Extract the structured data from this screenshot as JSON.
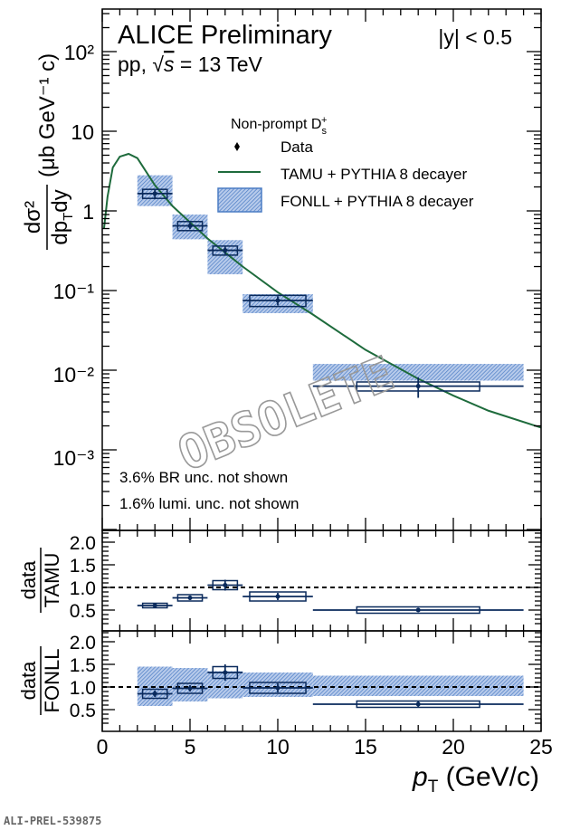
{
  "header": {
    "experiment": "ALICE Preliminary",
    "system_prefix": "pp, ",
    "sqrt": "√",
    "s": "s",
    "energy": " = 13 TeV",
    "rapidity": "|y| < 0.5"
  },
  "legend": {
    "title": "Non-prompt D",
    "title_sub": "s",
    "title_sup": "+",
    "entries": [
      "Data",
      "TAMU + PYTHIA 8 decayer",
      "FONLL + PYTHIA 8 decayer"
    ]
  },
  "notes": [
    "3.6% BR unc. not shown",
    "1.6% lumi. unc. not shown"
  ],
  "watermark": "OBSOLETE",
  "figure_id": "ALI-PREL-539875",
  "colors": {
    "data": "#0a2a5c",
    "tamu": "#1e6b3c",
    "fonll": "#4a7cc4",
    "fonll_fill": "#a9c0e6"
  },
  "axes": {
    "x_label_main": "p",
    "x_label_sub": "T",
    "x_label_unit": " (GeV/c)",
    "x_ticks": [
      "0",
      "5",
      "10",
      "15",
      "20",
      "25"
    ],
    "y_top_label_num": "dσ²",
    "y_top_label_den": "dp",
    "y_top_label_den_sub": "T",
    "y_top_label_den_end": "dy",
    "y_top_label_unit": "(μb GeV⁻¹ c)",
    "y_top_ticks": [
      "10²",
      "10",
      "1",
      "10⁻¹",
      "10⁻²",
      "10⁻³"
    ],
    "ratio_num": "data",
    "ratio1_den": "TAMU",
    "ratio2_den": "FONLL",
    "ratio_ticks": [
      "2.0",
      "1.5",
      "1.0",
      "0.5"
    ]
  },
  "chart_data": [
    {
      "type": "scatter",
      "panel": "spectrum",
      "xlim": [
        0,
        25
      ],
      "ylim": [
        0.00012,
        350
      ],
      "yscale": "log",
      "bins": [
        [
          2,
          4
        ],
        [
          4,
          6
        ],
        [
          6,
          8
        ],
        [
          8,
          12
        ],
        [
          12,
          24
        ]
      ],
      "x": [
        3,
        5,
        7,
        10,
        18
      ],
      "data": {
        "name": "Data",
        "y": [
          1.65,
          0.65,
          0.32,
          0.075,
          0.0063
        ],
        "stat": [
          0.25,
          0.06,
          0.035,
          0.01,
          0.0018
        ],
        "syst_rel": [
          0.13,
          0.13,
          0.13,
          0.16,
          0.13
        ],
        "syst_x": [
          0.7,
          0.7,
          0.7,
          1.6,
          3.5
        ]
      },
      "fonll": {
        "name": "FONLL + PYTHIA 8 decayer",
        "low": [
          1.15,
          0.44,
          0.16,
          0.052,
          0.0074
        ],
        "high": [
          2.8,
          0.9,
          0.43,
          0.09,
          0.012
        ]
      },
      "tamu": {
        "name": "TAMU + PYTHIA 8 decayer",
        "x": [
          0.1,
          0.3,
          0.6,
          1,
          1.5,
          2,
          3,
          4,
          5,
          6,
          7,
          8,
          10,
          12,
          15,
          18,
          20,
          22,
          25
        ],
        "y": [
          0.6,
          1.5,
          3.5,
          4.8,
          5.2,
          4.6,
          2.1,
          1.15,
          0.72,
          0.45,
          0.3,
          0.2,
          0.095,
          0.05,
          0.018,
          0.0078,
          0.0048,
          0.0031,
          0.0019
        ]
      }
    },
    {
      "type": "scatter",
      "panel": "ratio-tamu",
      "xlim": [
        0,
        25
      ],
      "ylim": [
        0.1,
        2.25
      ],
      "reference_line": 1.0,
      "x": [
        3,
        5,
        7,
        10,
        18
      ],
      "y": [
        0.6,
        0.77,
        1.05,
        0.8,
        0.5
      ],
      "stat": [
        0.05,
        0.05,
        0.12,
        0.08,
        0.03
      ],
      "syst": [
        0.05,
        0.07,
        0.1,
        0.1,
        0.07
      ]
    },
    {
      "type": "scatter",
      "panel": "ratio-fonll",
      "xlim": [
        0,
        25
      ],
      "ylim": [
        0.1,
        2.25
      ],
      "reference_line": 1.0,
      "x": [
        3,
        5,
        7,
        10,
        18
      ],
      "y": [
        0.85,
        0.97,
        1.32,
        0.98,
        0.62
      ],
      "stat": [
        0.07,
        0.07,
        0.18,
        0.1,
        0.07
      ],
      "syst": [
        0.1,
        0.11,
        0.13,
        0.12,
        0.07
      ],
      "band_low": [
        0.58,
        0.68,
        0.75,
        0.78,
        0.8
      ],
      "band_high": [
        1.45,
        1.42,
        1.35,
        1.32,
        1.25
      ]
    }
  ]
}
